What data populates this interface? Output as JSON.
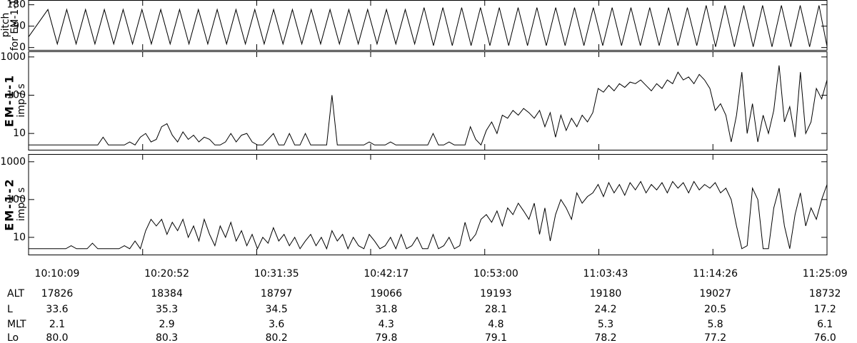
{
  "chart_data": [
    {
      "type": "line",
      "ylabel": "pitch",
      "yunit": "for EM-1-1",
      "ylabel_bold": false,
      "log": false,
      "ylim": [
        -10,
        200
      ],
      "yticks": [
        0,
        90,
        180
      ],
      "xlim": [
        0,
        4500
      ],
      "color": "#000000",
      "x": [
        0,
        109,
        162,
        215,
        268,
        321,
        374,
        427,
        480,
        533,
        586,
        639,
        692,
        745,
        798,
        851,
        904,
        957,
        1010,
        1063,
        1116,
        1169,
        1222,
        1275,
        1328,
        1381,
        1434,
        1487,
        1540,
        1593,
        1646,
        1699,
        1752,
        1805,
        1858,
        1911,
        1964,
        2017,
        2070,
        2123,
        2176,
        2229,
        2282,
        2335,
        2388,
        2441,
        2494,
        2547,
        2600,
        2653,
        2706,
        2759,
        2812,
        2865,
        2918,
        2971,
        3024,
        3077,
        3130,
        3183,
        3236,
        3289,
        3342,
        3395,
        3448,
        3501,
        3554,
        3607,
        3660,
        3713,
        3766,
        3819,
        3872,
        3925,
        3978,
        4031,
        4084,
        4137,
        4190,
        4243,
        4296,
        4349,
        4402,
        4455,
        4500
      ],
      "values": [
        45,
        160,
        15,
        160,
        15,
        160,
        15,
        160,
        15,
        160,
        15,
        160,
        15,
        160,
        15,
        160,
        15,
        160,
        15,
        160,
        15,
        160,
        15,
        160,
        15,
        160,
        15,
        160,
        15,
        160,
        15,
        160,
        15,
        160,
        15,
        160,
        15,
        160,
        15,
        160,
        15,
        168,
        8,
        168,
        8,
        168,
        8,
        168,
        8,
        168,
        8,
        168,
        8,
        168,
        8,
        168,
        8,
        168,
        8,
        168,
        8,
        168,
        8,
        168,
        8,
        168,
        8,
        168,
        8,
        168,
        8,
        177,
        3,
        177,
        3,
        177,
        3,
        177,
        3,
        177,
        3,
        177,
        3,
        177,
        5
      ]
    },
    {
      "type": "line",
      "ylabel": "EM-1-1",
      "yunit": "imp / s",
      "ylabel_bold": true,
      "log": true,
      "ylim": [
        3.75,
        1400
      ],
      "yticks": [
        10,
        100,
        1000
      ],
      "xlim": [
        0,
        4500
      ],
      "color": "#000000",
      "x": [
        0,
        30,
        60,
        90,
        120,
        150,
        180,
        210,
        240,
        270,
        300,
        330,
        360,
        390,
        420,
        450,
        480,
        510,
        540,
        570,
        600,
        630,
        660,
        690,
        720,
        750,
        780,
        810,
        840,
        870,
        900,
        930,
        960,
        990,
        1020,
        1050,
        1080,
        1110,
        1140,
        1170,
        1200,
        1230,
        1260,
        1290,
        1320,
        1350,
        1380,
        1410,
        1440,
        1470,
        1500,
        1530,
        1560,
        1590,
        1620,
        1650,
        1680,
        1710,
        1740,
        1770,
        1800,
        1830,
        1860,
        1890,
        1920,
        1950,
        1980,
        2010,
        2040,
        2070,
        2100,
        2130,
        2160,
        2190,
        2220,
        2250,
        2280,
        2310,
        2340,
        2370,
        2400,
        2430,
        2460,
        2490,
        2520,
        2550,
        2580,
        2610,
        2640,
        2670,
        2700,
        2730,
        2760,
        2790,
        2820,
        2850,
        2880,
        2910,
        2940,
        2970,
        3000,
        3030,
        3060,
        3090,
        3120,
        3150,
        3180,
        3210,
        3240,
        3270,
        3300,
        3330,
        3360,
        3390,
        3420,
        3450,
        3480,
        3510,
        3540,
        3570,
        3600,
        3630,
        3660,
        3690,
        3720,
        3750,
        3780,
        3810,
        3840,
        3870,
        3900,
        3930,
        3960,
        3990,
        4020,
        4050,
        4080,
        4110,
        4140,
        4170,
        4200,
        4230,
        4260,
        4290,
        4320,
        4350,
        4380,
        4410,
        4440,
        4470,
        4500
      ],
      "values": [
        5,
        5,
        5,
        5,
        5,
        5,
        5,
        5,
        5,
        5,
        5,
        5,
        5,
        5,
        8,
        5,
        5,
        5,
        5,
        6,
        5,
        8,
        10,
        6,
        7,
        15,
        18,
        9,
        6,
        11,
        7,
        9,
        6,
        8,
        7,
        5,
        5,
        6,
        10,
        6,
        9,
        10,
        6,
        5,
        5,
        7,
        10,
        5,
        5,
        10,
        5,
        5,
        10,
        5,
        5,
        5,
        5,
        100,
        5,
        5,
        5,
        5,
        5,
        5,
        6,
        5,
        5,
        5,
        6,
        5,
        5,
        5,
        5,
        5,
        5,
        5,
        10,
        5,
        5,
        6,
        5,
        5,
        5,
        15,
        7,
        5,
        12,
        20,
        10,
        30,
        25,
        40,
        30,
        45,
        35,
        25,
        40,
        15,
        35,
        8,
        30,
        12,
        25,
        15,
        30,
        20,
        35,
        150,
        120,
        180,
        130,
        200,
        160,
        220,
        200,
        250,
        180,
        130,
        200,
        150,
        250,
        200,
        400,
        250,
        300,
        200,
        350,
        250,
        150,
        40,
        60,
        30,
        6,
        30,
        400,
        10,
        60,
        6,
        30,
        10,
        40,
        600,
        20,
        50,
        8,
        400,
        10,
        20,
        150,
        80,
        250
      ]
    },
    {
      "type": "line",
      "ylabel": "EM-1-2",
      "yunit": "imp / s",
      "ylabel_bold": true,
      "log": true,
      "ylim": [
        3.5,
        1600
      ],
      "yticks": [
        10,
        100,
        1000
      ],
      "xlim": [
        0,
        4500
      ],
      "color": "#000000",
      "xticks": [
        {
          "value": 0,
          "label": "10:10:09"
        },
        {
          "value": 643,
          "label": "10:20:52"
        },
        {
          "value": 1286,
          "label": "10:31:35"
        },
        {
          "value": 1928,
          "label": "10:42:17"
        },
        {
          "value": 2571,
          "label": "10:53:00"
        },
        {
          "value": 3214,
          "label": "11:03:43"
        },
        {
          "value": 3857,
          "label": "11:14:26"
        },
        {
          "value": 4500,
          "label": "11:25:09"
        }
      ],
      "x": [
        0,
        30,
        60,
        90,
        120,
        150,
        180,
        210,
        240,
        270,
        300,
        330,
        360,
        390,
        420,
        450,
        480,
        510,
        540,
        570,
        600,
        630,
        660,
        690,
        720,
        750,
        780,
        810,
        840,
        870,
        900,
        930,
        960,
        990,
        1020,
        1050,
        1080,
        1110,
        1140,
        1170,
        1200,
        1230,
        1260,
        1290,
        1320,
        1350,
        1380,
        1410,
        1440,
        1470,
        1500,
        1530,
        1560,
        1590,
        1620,
        1650,
        1680,
        1710,
        1740,
        1770,
        1800,
        1830,
        1860,
        1890,
        1920,
        1950,
        1980,
        2010,
        2040,
        2070,
        2100,
        2130,
        2160,
        2190,
        2220,
        2250,
        2280,
        2310,
        2340,
        2370,
        2400,
        2430,
        2460,
        2490,
        2520,
        2550,
        2580,
        2610,
        2640,
        2670,
        2700,
        2730,
        2760,
        2790,
        2820,
        2850,
        2880,
        2910,
        2940,
        2970,
        3000,
        3030,
        3060,
        3090,
        3120,
        3150,
        3180,
        3210,
        3240,
        3270,
        3300,
        3330,
        3360,
        3390,
        3420,
        3450,
        3480,
        3510,
        3540,
        3570,
        3600,
        3630,
        3660,
        3690,
        3720,
        3750,
        3780,
        3810,
        3840,
        3870,
        3900,
        3930,
        3960,
        3990,
        4020,
        4050,
        4080,
        4110,
        4140,
        4170,
        4200,
        4230,
        4260,
        4290,
        4320,
        4350,
        4380,
        4410,
        4440,
        4470,
        4500
      ],
      "values": [
        5,
        5,
        5,
        5,
        5,
        5,
        5,
        5,
        6,
        5,
        5,
        5,
        7,
        5,
        5,
        5,
        5,
        5,
        6,
        5,
        8,
        5,
        15,
        30,
        20,
        30,
        12,
        25,
        15,
        30,
        10,
        20,
        8,
        30,
        12,
        6,
        20,
        10,
        25,
        8,
        15,
        6,
        12,
        5,
        10,
        7,
        18,
        8,
        12,
        6,
        10,
        5,
        8,
        12,
        6,
        10,
        5,
        15,
        8,
        12,
        5,
        10,
        6,
        5,
        12,
        8,
        5,
        6,
        10,
        5,
        12,
        5,
        6,
        10,
        5,
        5,
        12,
        5,
        6,
        10,
        5,
        6,
        25,
        8,
        12,
        30,
        40,
        25,
        50,
        20,
        60,
        40,
        80,
        50,
        30,
        80,
        12,
        60,
        8,
        40,
        100,
        60,
        30,
        150,
        80,
        120,
        150,
        250,
        120,
        280,
        150,
        250,
        130,
        280,
        180,
        300,
        150,
        250,
        180,
        280,
        150,
        300,
        200,
        280,
        150,
        300,
        180,
        250,
        200,
        280,
        150,
        200,
        100,
        20,
        5,
        6,
        200,
        100,
        5,
        5,
        60,
        200,
        20,
        5,
        40,
        150,
        20,
        60,
        30,
        100,
        250
      ]
    }
  ],
  "ephemeris": [
    {
      "label": "ALT",
      "values": [
        "17826",
        "18384",
        "18797",
        "19066",
        "19193",
        "19180",
        "19027",
        "18732"
      ]
    },
    {
      "label": "L",
      "values": [
        "33.6",
        "35.3",
        "34.5",
        "31.8",
        "28.1",
        "24.2",
        "20.5",
        "17.2"
      ]
    },
    {
      "label": "MLT",
      "values": [
        "2.1",
        "2.9",
        "3.6",
        "4.3",
        "4.8",
        "5.3",
        "5.8",
        "6.1"
      ]
    },
    {
      "label": "Lo",
      "values": [
        "80.0",
        "80.3",
        "80.2",
        "79.8",
        "79.1",
        "78.2",
        "77.2",
        "76.0"
      ]
    }
  ]
}
